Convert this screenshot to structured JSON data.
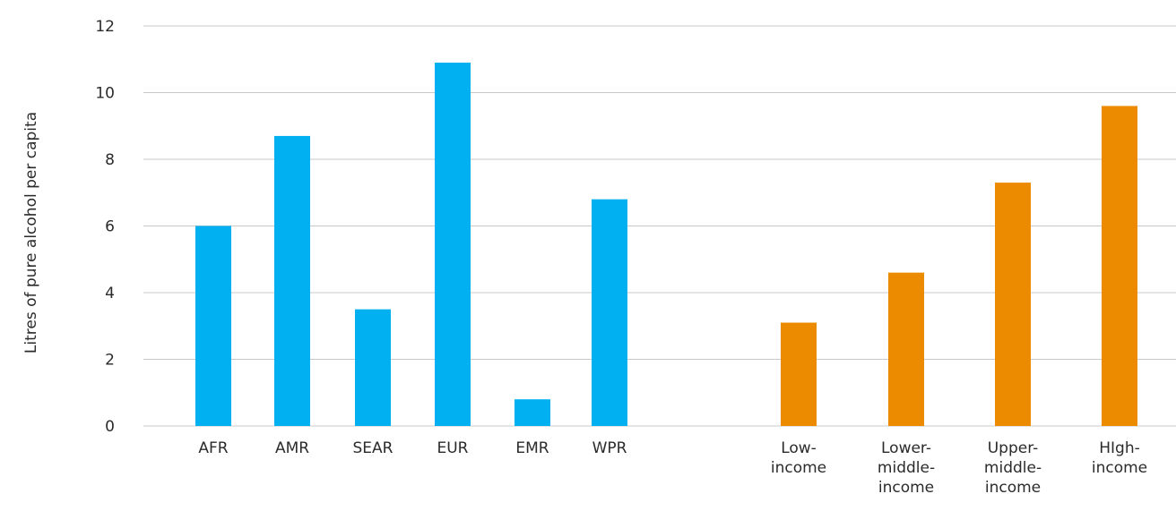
{
  "chart_data": [
    {
      "type": "bar",
      "ylabel": "Litres of pure alcohol per capita",
      "ylim": [
        0,
        12
      ],
      "yticks": [
        "0",
        "2",
        "4",
        "6",
        "8",
        "10",
        "12"
      ],
      "grid": true,
      "categories": [
        "AFR",
        "AMR",
        "SEAR",
        "EUR",
        "EMR",
        "WPR"
      ],
      "values": [
        6.0,
        8.7,
        3.5,
        10.9,
        0.8,
        6.8
      ],
      "color": "#00b0f0"
    },
    {
      "type": "bar",
      "ylim": [
        0,
        12
      ],
      "grid": true,
      "categories": [
        [
          "Low-",
          "income"
        ],
        [
          "Lower-",
          "middle-",
          "income"
        ],
        [
          "Upper-",
          "middle-",
          "income"
        ],
        [
          "HIgh-",
          "income"
        ]
      ],
      "values": [
        3.1,
        4.6,
        7.3,
        9.6
      ],
      "color": "#ed8b00"
    }
  ],
  "colors": {
    "gridline": "#c8c8c8",
    "text": "#2b2b2b"
  }
}
